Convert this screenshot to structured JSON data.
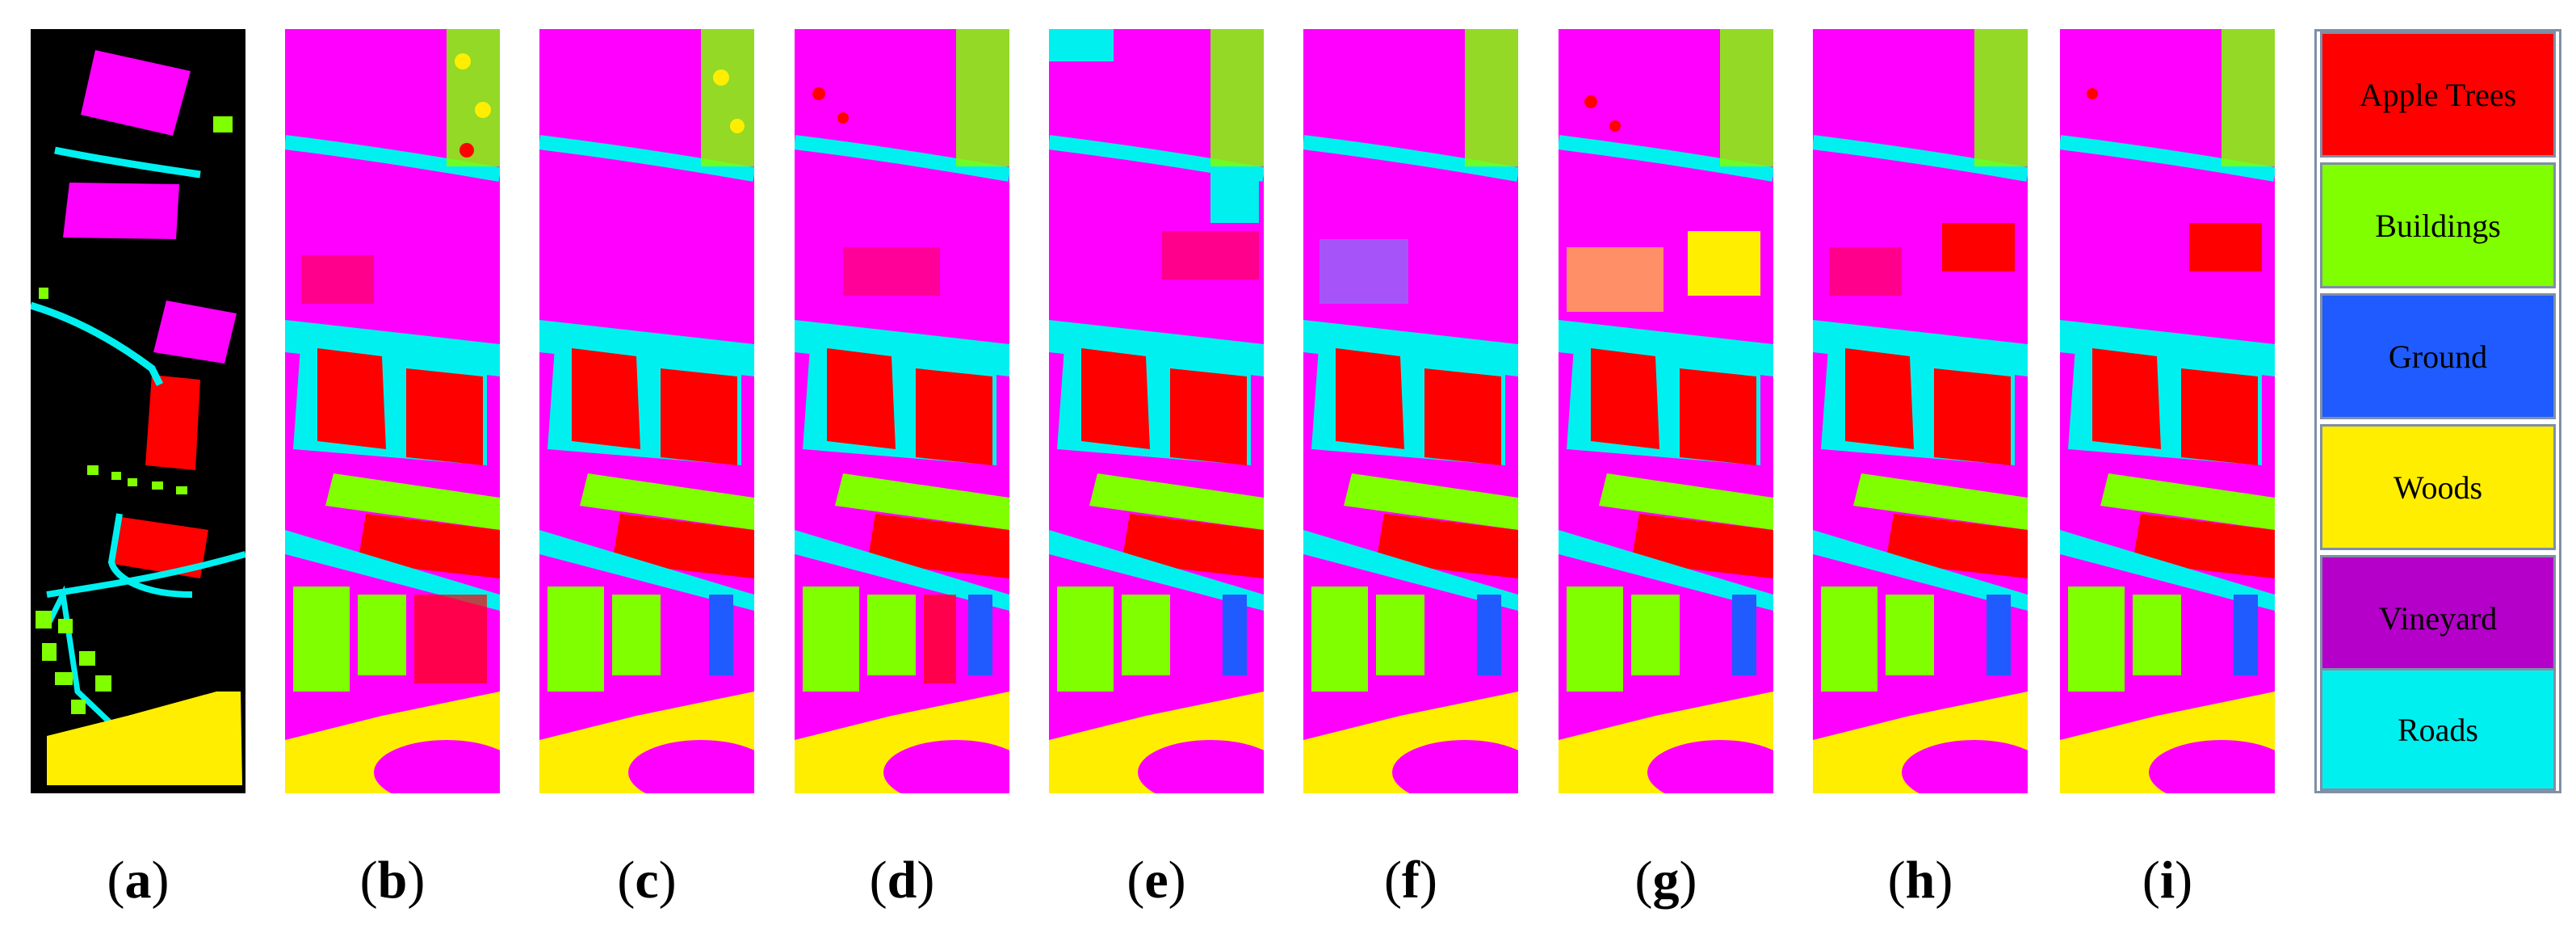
{
  "panels": [
    {
      "id": "a",
      "label": "(a)",
      "letter": "a"
    },
    {
      "id": "b",
      "label": "(b)",
      "letter": "b"
    },
    {
      "id": "c",
      "label": "(c)",
      "letter": "c"
    },
    {
      "id": "d",
      "label": "(d)",
      "letter": "d"
    },
    {
      "id": "e",
      "label": "(e)",
      "letter": "e"
    },
    {
      "id": "f",
      "label": "(f)",
      "letter": "f"
    },
    {
      "id": "g",
      "label": "(g)",
      "letter": "g"
    },
    {
      "id": "h",
      "label": "(h)",
      "letter": "h"
    },
    {
      "id": "i",
      "label": "(i)",
      "letter": "i"
    }
  ],
  "legend": [
    {
      "label": "Apple Trees",
      "color": "#ff0000"
    },
    {
      "label": "Buildings",
      "color": "#80ff00"
    },
    {
      "label": "Ground",
      "color": "#1f5bff"
    },
    {
      "label": "Woods",
      "color": "#ffee00"
    },
    {
      "label": "Vineyard",
      "color": "#b400c8"
    },
    {
      "label": "Roads",
      "color": "#00f0f0"
    }
  ],
  "colors": {
    "vineyard_map": "#ff00ff",
    "background": "#000000"
  }
}
